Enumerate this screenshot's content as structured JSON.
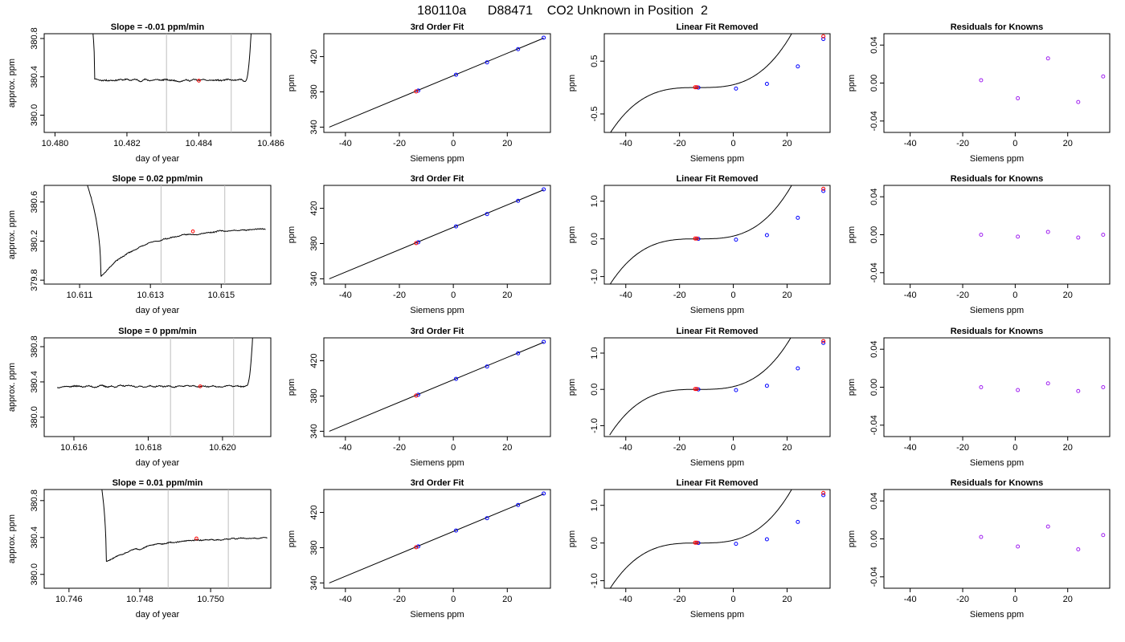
{
  "figure_title": "180110a      D88471    CO2 Unknown in Position  2",
  "colors": {
    "line": "#000000",
    "vline": "#bebebe",
    "known": "#0000ff",
    "unknown": "#ff0000",
    "residual": "#a020f0"
  },
  "chart_data": [
    {
      "type": "line",
      "title": "Slope =  -0.01  ppm/min",
      "xlabel": "day of year",
      "ylabel": "approx. ppm",
      "xlim": [
        10.4797,
        10.486
      ],
      "ylim": [
        379.82,
        380.85
      ],
      "xticks": [
        10.48,
        10.482,
        10.484,
        10.486
      ],
      "xtick_labels": [
        "10.480",
        "10.482",
        "10.484",
        "10.486"
      ],
      "yticks": [
        380.0,
        380.4,
        380.8
      ],
      "ytick_labels": [
        "380.0",
        "380.4",
        "380.8"
      ],
      "vlines": [
        10.4831,
        10.4849
      ],
      "marker": [
        10.484,
        380.36
      ],
      "trace": {
        "x0": 10.48045,
        "x1": 10.48555,
        "start": 381.6,
        "shift": 10.4811,
        "level": 380.37,
        "drift": -0.01,
        "wiggle": 0.018,
        "rise_at": 10.4853,
        "seed": 11
      }
    },
    {
      "type": "scatter",
      "title": "3rd Order Fit",
      "xlabel": "Siemens ppm",
      "ylabel": "ppm",
      "xlim": [
        -48,
        36
      ],
      "ylim": [
        334,
        446
      ],
      "xticks": [
        -40,
        -20,
        0,
        20
      ],
      "xtick_labels": [
        "-40",
        "-20",
        "0",
        "20"
      ],
      "yticks": [
        340,
        380,
        420
      ],
      "ytick_labels": [
        "340",
        "380",
        "420"
      ],
      "fit_line": [
        [
          -46,
          340
        ],
        [
          33.5,
          441
        ]
      ],
      "known": [
        [
          -13,
          381.5
        ],
        [
          1,
          399.5
        ],
        [
          12.5,
          413.5
        ],
        [
          24,
          428.5
        ],
        [
          33.5,
          441.5
        ]
      ],
      "unknown": [
        [
          -13.8,
          380.5
        ]
      ]
    },
    {
      "type": "line",
      "title": "Linear Fit Removed",
      "xlabel": "Siemens ppm",
      "ylabel": "ppm",
      "xlim": [
        -48,
        36
      ],
      "ylim": [
        -0.85,
        1.02
      ],
      "xticks": [
        -40,
        -20,
        0,
        20
      ],
      "xtick_labels": [
        "-40",
        "-20",
        "0",
        "20"
      ],
      "yticks": [
        -0.5,
        0.5
      ],
      "ytick_labels": [
        "-0.5",
        "0.5"
      ],
      "curve": {
        "x0": -46,
        "x1": 33.5,
        "a": 2.44e-05,
        "r": -13,
        "c": 0.0
      },
      "known": [
        [
          -13,
          0.0
        ],
        [
          1,
          -0.02
        ],
        [
          12.5,
          0.07
        ],
        [
          24,
          0.4
        ],
        [
          33.5,
          0.92
        ]
      ],
      "unknown": [
        [
          -14.2,
          0.005
        ],
        [
          -13.6,
          0.005
        ],
        [
          33.5,
          0.97
        ]
      ]
    },
    {
      "type": "scatter",
      "title": "Residuals for Knowns",
      "xlabel": "Siemens ppm",
      "ylabel": "ppm",
      "xlim": [
        -50,
        36
      ],
      "ylim": [
        -0.052,
        0.052
      ],
      "xticks": [
        -40,
        -20,
        0,
        20
      ],
      "xtick_labels": [
        "-40",
        "-20",
        "0",
        "20"
      ],
      "yticks": [
        -0.04,
        0.0,
        0.04
      ],
      "ytick_labels": [
        "-0.04",
        "0.00",
        "0.04"
      ],
      "residuals": [
        [
          -13,
          0.003
        ],
        [
          1,
          -0.016
        ],
        [
          12.5,
          0.026
        ],
        [
          24,
          -0.02
        ],
        [
          33.5,
          0.007
        ]
      ]
    },
    {
      "type": "line",
      "title": "Slope =  0.02  ppm/min",
      "xlabel": "day of year",
      "ylabel": "approx. ppm",
      "xlim": [
        10.61,
        10.6164
      ],
      "ylim": [
        379.76,
        380.77
      ],
      "xticks": [
        10.611,
        10.613,
        10.615
      ],
      "xtick_labels": [
        "10.611",
        "10.613",
        "10.615"
      ],
      "yticks": [
        379.8,
        380.2,
        380.6
      ],
      "ytick_labels": [
        "379.8",
        "380.2",
        "380.6"
      ],
      "vlines": [
        10.6133,
        10.6151
      ],
      "marker": [
        10.6142,
        380.3
      ],
      "trace": {
        "x0": 10.61072,
        "x1": 10.61625,
        "start": 381.2,
        "shift": 10.6117,
        "dip_at": 10.6116,
        "dip": 379.84,
        "level": 380.3,
        "drift": 0.03,
        "wiggle": 0.012,
        "seed": 23
      }
    },
    {
      "type": "scatter",
      "title": "3rd Order Fit",
      "xlabel": "Siemens ppm",
      "ylabel": "ppm",
      "xlim": [
        -48,
        36
      ],
      "ylim": [
        334,
        446
      ],
      "xticks": [
        -40,
        -20,
        0,
        20
      ],
      "xtick_labels": [
        "-40",
        "-20",
        "0",
        "20"
      ],
      "yticks": [
        340,
        380,
        420
      ],
      "ytick_labels": [
        "340",
        "380",
        "420"
      ],
      "fit_line": [
        [
          -46,
          340
        ],
        [
          33.5,
          441
        ]
      ],
      "known": [
        [
          -13,
          381.5
        ],
        [
          1,
          399.5
        ],
        [
          12.5,
          413.5
        ],
        [
          24,
          428.5
        ],
        [
          33.5,
          441.5
        ]
      ],
      "unknown": [
        [
          -13.8,
          380.5
        ]
      ]
    },
    {
      "type": "line",
      "title": "Linear Fit Removed",
      "xlabel": "Siemens ppm",
      "ylabel": "ppm",
      "xlim": [
        -48,
        36
      ],
      "ylim": [
        -1.2,
        1.42
      ],
      "xticks": [
        -40,
        -20,
        0,
        20
      ],
      "xtick_labels": [
        "-40",
        "-20",
        "0",
        "20"
      ],
      "yticks": [
        -1.0,
        0.0,
        1.0
      ],
      "ytick_labels": [
        "-1.0",
        "0.0",
        "1.0"
      ],
      "curve": {
        "x0": -46,
        "x1": 33.5,
        "a": 3.4e-05,
        "r": -13,
        "c": 0.0
      },
      "known": [
        [
          -13,
          0.0
        ],
        [
          1,
          -0.02
        ],
        [
          12.5,
          0.1
        ],
        [
          24,
          0.56
        ],
        [
          33.5,
          1.27
        ]
      ],
      "unknown": [
        [
          -14.2,
          0.01
        ],
        [
          -13.6,
          0.01
        ],
        [
          33.5,
          1.33
        ]
      ]
    },
    {
      "type": "scatter",
      "title": "Residuals for Knowns",
      "xlabel": "Siemens ppm",
      "ylabel": "ppm",
      "xlim": [
        -50,
        36
      ],
      "ylim": [
        -0.052,
        0.052
      ],
      "xticks": [
        -40,
        -20,
        0,
        20
      ],
      "xtick_labels": [
        "-40",
        "-20",
        "0",
        "20"
      ],
      "yticks": [
        -0.04,
        0.0,
        0.04
      ],
      "ytick_labels": [
        "-0.04",
        "0.00",
        "0.04"
      ],
      "residuals": [
        [
          -13,
          0.0
        ],
        [
          1,
          -0.002
        ],
        [
          12.5,
          0.003
        ],
        [
          24,
          -0.003
        ],
        [
          33.5,
          0.0
        ]
      ]
    },
    {
      "type": "line",
      "title": "Slope =  0  ppm/min",
      "xlabel": "day of year",
      "ylabel": "approx. ppm",
      "xlim": [
        10.6152,
        10.6213
      ],
      "ylim": [
        379.78,
        380.9
      ],
      "xticks": [
        10.616,
        10.618,
        10.62
      ],
      "xtick_labels": [
        "10.616",
        "10.618",
        "10.620"
      ],
      "yticks": [
        380.0,
        380.4,
        380.8
      ],
      "ytick_labels": [
        "380.0",
        "380.4",
        "380.8"
      ],
      "vlines": [
        10.6186,
        10.6203
      ],
      "marker": [
        10.6194,
        380.35
      ],
      "trace": {
        "x0": 10.61555,
        "x1": 10.6209,
        "start": 380.34,
        "level": 380.35,
        "drift": 0.0,
        "wiggle": 0.017,
        "rise_at": 10.62065,
        "seed": 37
      }
    },
    {
      "type": "scatter",
      "title": "3rd Order Fit",
      "xlabel": "Siemens ppm",
      "ylabel": "ppm",
      "xlim": [
        -48,
        36
      ],
      "ylim": [
        334,
        446
      ],
      "xticks": [
        -40,
        -20,
        0,
        20
      ],
      "xtick_labels": [
        "-40",
        "-20",
        "0",
        "20"
      ],
      "yticks": [
        340,
        380,
        420
      ],
      "ytick_labels": [
        "340",
        "380",
        "420"
      ],
      "fit_line": [
        [
          -46,
          340
        ],
        [
          33.5,
          441
        ]
      ],
      "known": [
        [
          -13,
          381.5
        ],
        [
          1,
          399.5
        ],
        [
          12.5,
          413.5
        ],
        [
          24,
          428.5
        ],
        [
          33.5,
          441.5
        ]
      ],
      "unknown": [
        [
          -13.8,
          380.5
        ]
      ]
    },
    {
      "type": "line",
      "title": "Linear Fit Removed",
      "xlabel": "Siemens ppm",
      "ylabel": "ppm",
      "xlim": [
        -48,
        36
      ],
      "ylim": [
        -1.3,
        1.42
      ],
      "xticks": [
        -40,
        -20,
        0,
        20
      ],
      "xtick_labels": [
        "-40",
        "-20",
        "0",
        "20"
      ],
      "yticks": [
        -1.0,
        0.0,
        1.0
      ],
      "ytick_labels": [
        "-1.0",
        "0.0",
        "1.0"
      ],
      "curve": {
        "x0": -46,
        "x1": 33.5,
        "a": 3.5e-05,
        "r": -13,
        "c": 0.0
      },
      "known": [
        [
          -13,
          0.0
        ],
        [
          1,
          -0.02
        ],
        [
          12.5,
          0.1
        ],
        [
          24,
          0.58
        ],
        [
          33.5,
          1.28
        ]
      ],
      "unknown": [
        [
          -14.2,
          0.01
        ],
        [
          -13.6,
          0.01
        ],
        [
          33.5,
          1.33
        ]
      ]
    },
    {
      "type": "scatter",
      "title": "Residuals for Knowns",
      "xlabel": "Siemens ppm",
      "ylabel": "ppm",
      "xlim": [
        -50,
        36
      ],
      "ylim": [
        -0.052,
        0.052
      ],
      "xticks": [
        -40,
        -20,
        0,
        20
      ],
      "xtick_labels": [
        "-40",
        "-20",
        "0",
        "20"
      ],
      "yticks": [
        -0.04,
        0.0,
        0.04
      ],
      "ytick_labels": [
        "-0.04",
        "0.00",
        "0.04"
      ],
      "residuals": [
        [
          -13,
          0.0
        ],
        [
          1,
          -0.003
        ],
        [
          12.5,
          0.004
        ],
        [
          24,
          -0.004
        ],
        [
          33.5,
          0.0
        ]
      ]
    },
    {
      "type": "line",
      "title": "Slope =  0.01  ppm/min",
      "xlabel": "day of year",
      "ylabel": "approx. ppm",
      "xlim": [
        10.7453,
        10.7517
      ],
      "ylim": [
        379.85,
        380.92
      ],
      "xticks": [
        10.746,
        10.748,
        10.75
      ],
      "xtick_labels": [
        "10.746",
        "10.748",
        "10.750"
      ],
      "yticks": [
        380.0,
        380.4,
        380.8
      ],
      "ytick_labels": [
        "380.0",
        "380.4",
        "380.8"
      ],
      "vlines": [
        10.7488,
        10.7505
      ],
      "marker": [
        10.7496,
        380.39
      ],
      "trace": {
        "x0": 10.74655,
        "x1": 10.7516,
        "start": 381.6,
        "shift": 10.747,
        "dip_at": 10.74705,
        "dip": 380.14,
        "level": 380.38,
        "drift": 0.02,
        "wiggle": 0.014,
        "seed": 51
      }
    },
    {
      "type": "scatter",
      "title": "3rd Order Fit",
      "xlabel": "Siemens ppm",
      "ylabel": "ppm",
      "xlim": [
        -48,
        36
      ],
      "ylim": [
        334,
        446
      ],
      "xticks": [
        -40,
        -20,
        0,
        20
      ],
      "xtick_labels": [
        "-40",
        "-20",
        "0",
        "20"
      ],
      "yticks": [
        340,
        380,
        420
      ],
      "ytick_labels": [
        "340",
        "380",
        "420"
      ],
      "fit_line": [
        [
          -46,
          340
        ],
        [
          33.5,
          441
        ]
      ],
      "known": [
        [
          -13,
          381.5
        ],
        [
          1,
          399.5
        ],
        [
          12.5,
          413.5
        ],
        [
          24,
          428.5
        ],
        [
          33.5,
          441.5
        ]
      ],
      "unknown": [
        [
          -13.8,
          380.5
        ]
      ]
    },
    {
      "type": "line",
      "title": "Linear Fit Removed",
      "xlabel": "Siemens ppm",
      "ylabel": "ppm",
      "xlim": [
        -48,
        36
      ],
      "ylim": [
        -1.2,
        1.42
      ],
      "xticks": [
        -40,
        -20,
        0,
        20
      ],
      "xtick_labels": [
        "-40",
        "-20",
        "0",
        "20"
      ],
      "yticks": [
        -1.0,
        0.0,
        1.0
      ],
      "ytick_labels": [
        "-1.0",
        "0.0",
        "1.0"
      ],
      "curve": {
        "x0": -46,
        "x1": 33.5,
        "a": 3.4e-05,
        "r": -13,
        "c": 0.0
      },
      "known": [
        [
          -13,
          0.0
        ],
        [
          1,
          -0.02
        ],
        [
          12.5,
          0.1
        ],
        [
          24,
          0.56
        ],
        [
          33.5,
          1.27
        ]
      ],
      "unknown": [
        [
          -14.2,
          0.01
        ],
        [
          -13.6,
          0.01
        ],
        [
          33.5,
          1.33
        ]
      ]
    },
    {
      "type": "scatter",
      "title": "Residuals for Knowns",
      "xlabel": "Siemens ppm",
      "ylabel": "ppm",
      "xlim": [
        -50,
        36
      ],
      "ylim": [
        -0.052,
        0.052
      ],
      "xticks": [
        -40,
        -20,
        0,
        20
      ],
      "xtick_labels": [
        "-40",
        "-20",
        "0",
        "20"
      ],
      "yticks": [
        -0.04,
        0.0,
        0.04
      ],
      "ytick_labels": [
        "-0.04",
        "0.00",
        "0.04"
      ],
      "residuals": [
        [
          -13,
          0.002
        ],
        [
          1,
          -0.008
        ],
        [
          12.5,
          0.013
        ],
        [
          24,
          -0.011
        ],
        [
          33.5,
          0.004
        ]
      ]
    }
  ]
}
